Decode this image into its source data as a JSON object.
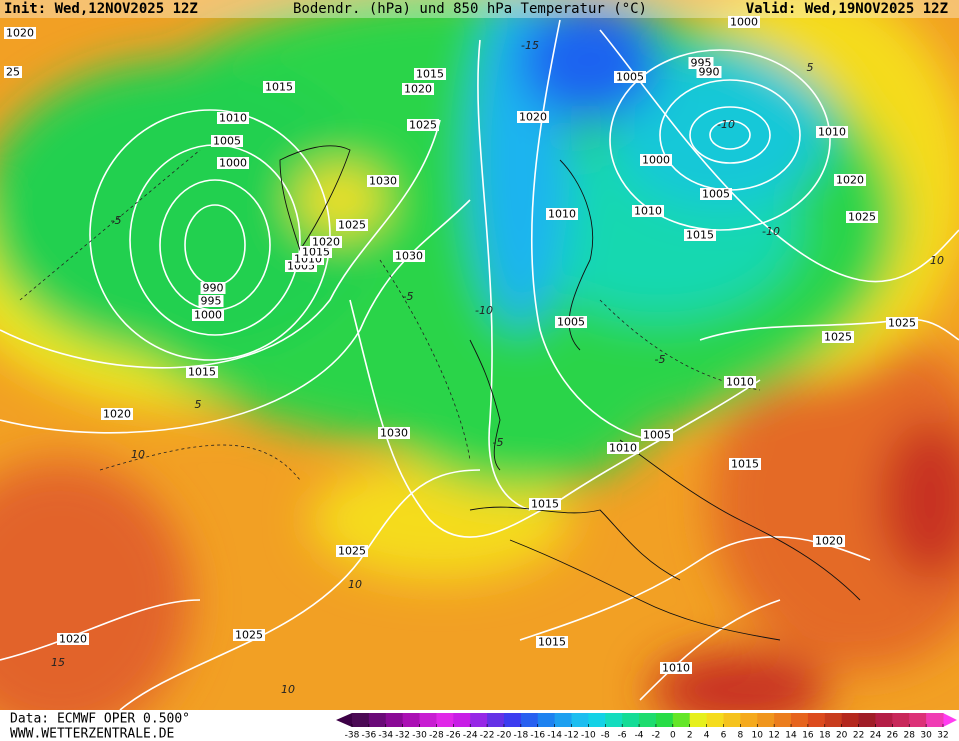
{
  "header": {
    "init": "Init: Wed,12NOV2025 12Z",
    "title": "Bodendr. (hPa) und 850 hPa Temperatur (°C)",
    "valid": "Valid: Wed,19NOV2025 12Z"
  },
  "isobar_labels": [
    "1020",
    "25",
    "1015",
    "1010",
    "1005",
    "1000",
    "990",
    "995",
    "1000",
    "1015",
    "1020",
    "1005",
    "1010",
    "1015",
    "1020",
    "1025",
    "1030",
    "1030",
    "1015",
    "1020",
    "1025",
    "1020",
    "1010",
    "1010",
    "1005",
    "1000",
    "995",
    "990",
    "1000",
    "1010",
    "1020",
    "1025",
    "1005",
    "1015",
    "1005",
    "1030",
    "1015",
    "1010",
    "1005",
    "1010",
    "1015",
    "1025",
    "1025",
    "1020",
    "1025",
    "1025",
    "1020",
    "1015",
    "1010"
  ],
  "temperature_labels": [
    "-5",
    "-10",
    "10",
    "15",
    "10",
    "-5",
    "-5",
    "-10",
    "-15",
    "-10",
    "5",
    "10",
    "5",
    "-5",
    "10"
  ],
  "colorbar": {
    "labels": [
      -38,
      -36,
      -34,
      -32,
      -30,
      -28,
      -26,
      -24,
      -22,
      -20,
      -18,
      -16,
      -14,
      -12,
      -10,
      -8,
      -6,
      -4,
      -2,
      0,
      2,
      4,
      6,
      8,
      10,
      12,
      14,
      16,
      18,
      20,
      22,
      24,
      26,
      28,
      30,
      32
    ],
    "colors": [
      "#4b0a55",
      "#6a0a78",
      "#8a0a96",
      "#aa10b4",
      "#c81ed2",
      "#e028e8",
      "#c81ee6",
      "#9628e6",
      "#6432e6",
      "#3c3cf0",
      "#2860f0",
      "#1e82f0",
      "#1ea0f0",
      "#1ebef0",
      "#14d2e6",
      "#14dcbe",
      "#14dc96",
      "#1edc6e",
      "#28dc46",
      "#64e628",
      "#e6f01e",
      "#f5dc1e",
      "#f5c31e",
      "#f5aa1e",
      "#f0961e",
      "#eb7d1e",
      "#e6641e",
      "#dc4b1e",
      "#c83c1e",
      "#b4281e",
      "#a01e28",
      "#b41e46",
      "#c8285a",
      "#dc3278",
      "#f03cb4"
    ],
    "end_low": "#3c0046",
    "end_high": "#ff3cf0"
  },
  "footer": {
    "source": "Data: ECMWF OPER 0.500°",
    "site": "WWW.WETTERZENTRALE.DE"
  }
}
